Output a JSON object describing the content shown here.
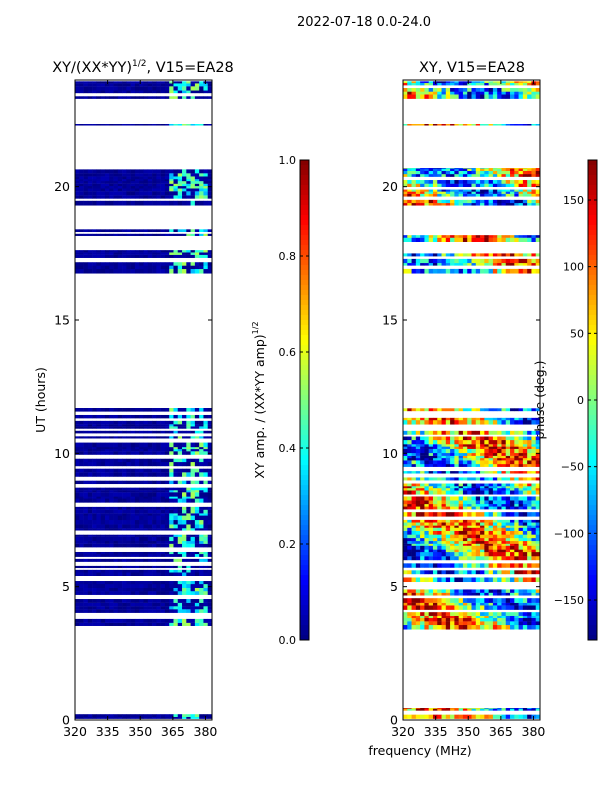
{
  "figure": {
    "suptitle": "2022-07-18 0.0-24.0",
    "xlabel_shared": "frequency (MHz)"
  },
  "colormap": "jet",
  "chart_data": [
    {
      "type": "heatmap",
      "id": "amp",
      "title_main": "XY/(XX*YY)",
      "title_sup": "1/2",
      "title_suffix": ", V15=EA28",
      "xlabel": "",
      "ylabel": "UT (hours)",
      "xlim": [
        320,
        383
      ],
      "ylim": [
        0,
        24
      ],
      "xticks": [
        320,
        335,
        350,
        365,
        380
      ],
      "yticks": [
        0,
        5,
        10,
        15,
        20
      ],
      "time_blocks_hours": [
        [
          0.05,
          0.45
        ],
        [
          3.4,
          11.7
        ],
        [
          16.75,
          18.4
        ],
        [
          19.3,
          20.7
        ],
        [
          22.3,
          22.35
        ],
        [
          23.3,
          23.95
        ]
      ],
      "value_ranges": {
        "background": [
          0.0,
          0.05
        ],
        "high_band_mhz": [
          362,
          381
        ],
        "high_values": [
          0.3,
          0.55
        ]
      },
      "colorbar": {
        "min": 0.0,
        "max": 1.0,
        "ticks": [
          0.0,
          0.2,
          0.4,
          0.6,
          0.8,
          1.0
        ],
        "tick_labels": [
          "0.0",
          "0.2",
          "0.4",
          "0.6",
          "0.8",
          "1.0"
        ],
        "label_main": "XY amp. / (XX*YY amp)",
        "label_sup": "1/2"
      }
    },
    {
      "type": "heatmap",
      "id": "phase",
      "title_main": "XY, V15=EA28",
      "xlabel": "frequency (MHz)",
      "ylabel": "",
      "xlim": [
        320,
        383
      ],
      "ylim": [
        0,
        24
      ],
      "xticks": [
        320,
        335,
        350,
        365,
        380
      ],
      "yticks": [
        0,
        5,
        10,
        15,
        20
      ],
      "time_blocks_hours": [
        [
          0.05,
          0.45
        ],
        [
          3.4,
          11.7
        ],
        [
          16.75,
          18.4
        ],
        [
          19.3,
          20.7
        ],
        [
          22.3,
          22.35
        ],
        [
          23.3,
          23.95
        ]
      ],
      "value_ranges": {
        "min_deg": -180,
        "max_deg": 180
      },
      "colorbar": {
        "min": -180,
        "max": 180,
        "ticks": [
          -150,
          -100,
          -50,
          0,
          50,
          100,
          150
        ],
        "tick_labels": [
          "−150",
          "−100",
          "−50",
          "0",
          "50",
          "100",
          "150"
        ],
        "label_main": "phase (deg.)"
      }
    }
  ]
}
